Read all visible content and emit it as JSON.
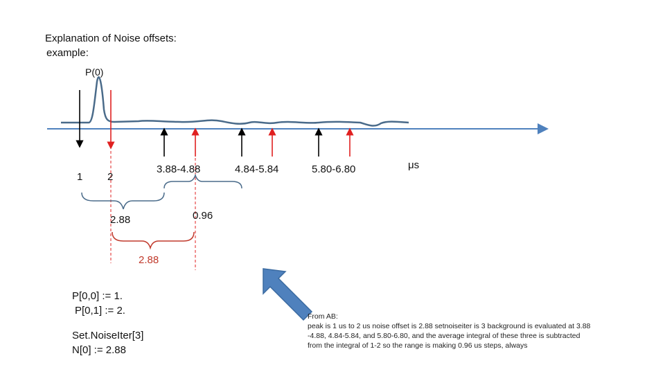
{
  "title": {
    "line1": "Explanation of Noise offsets:",
    "line2": "example:"
  },
  "peak_label": "P(0)",
  "unit_label": "μs",
  "markers": {
    "point_1": "1",
    "point_2": "2",
    "window_1": "3.88-4.88",
    "window_2": "4.84-5.84",
    "window_3": "5.80-6.80"
  },
  "spans": {
    "first_span": "2.88",
    "step_span": "0.96",
    "red_span": "2.88"
  },
  "code": {
    "line1": "P[0,0] := 1.",
    "line2": "P[0,1] := 2.",
    "line3": "Set.NoiseIter[3]",
    "line4": "N[0] := 2.88"
  },
  "note": {
    "line1": "From AB:",
    "line2": "peak is 1 us to 2 us noise offset is 2.88 setnoiseiter is 3 background is evaluated at 3.88",
    "line3": "-4.88, 4.84-5.84, and 5.80-6.80, and the average integral of these three is subtracted",
    "line4": "from the integral of 1-2 so the range is making 0.96 us steps, always"
  },
  "colors": {
    "axis": "#4f81bd",
    "signal": "#4a6b8a",
    "red_marker": "#e02020",
    "black_marker": "#000000",
    "pointer_arrow": "#4f81bd"
  }
}
